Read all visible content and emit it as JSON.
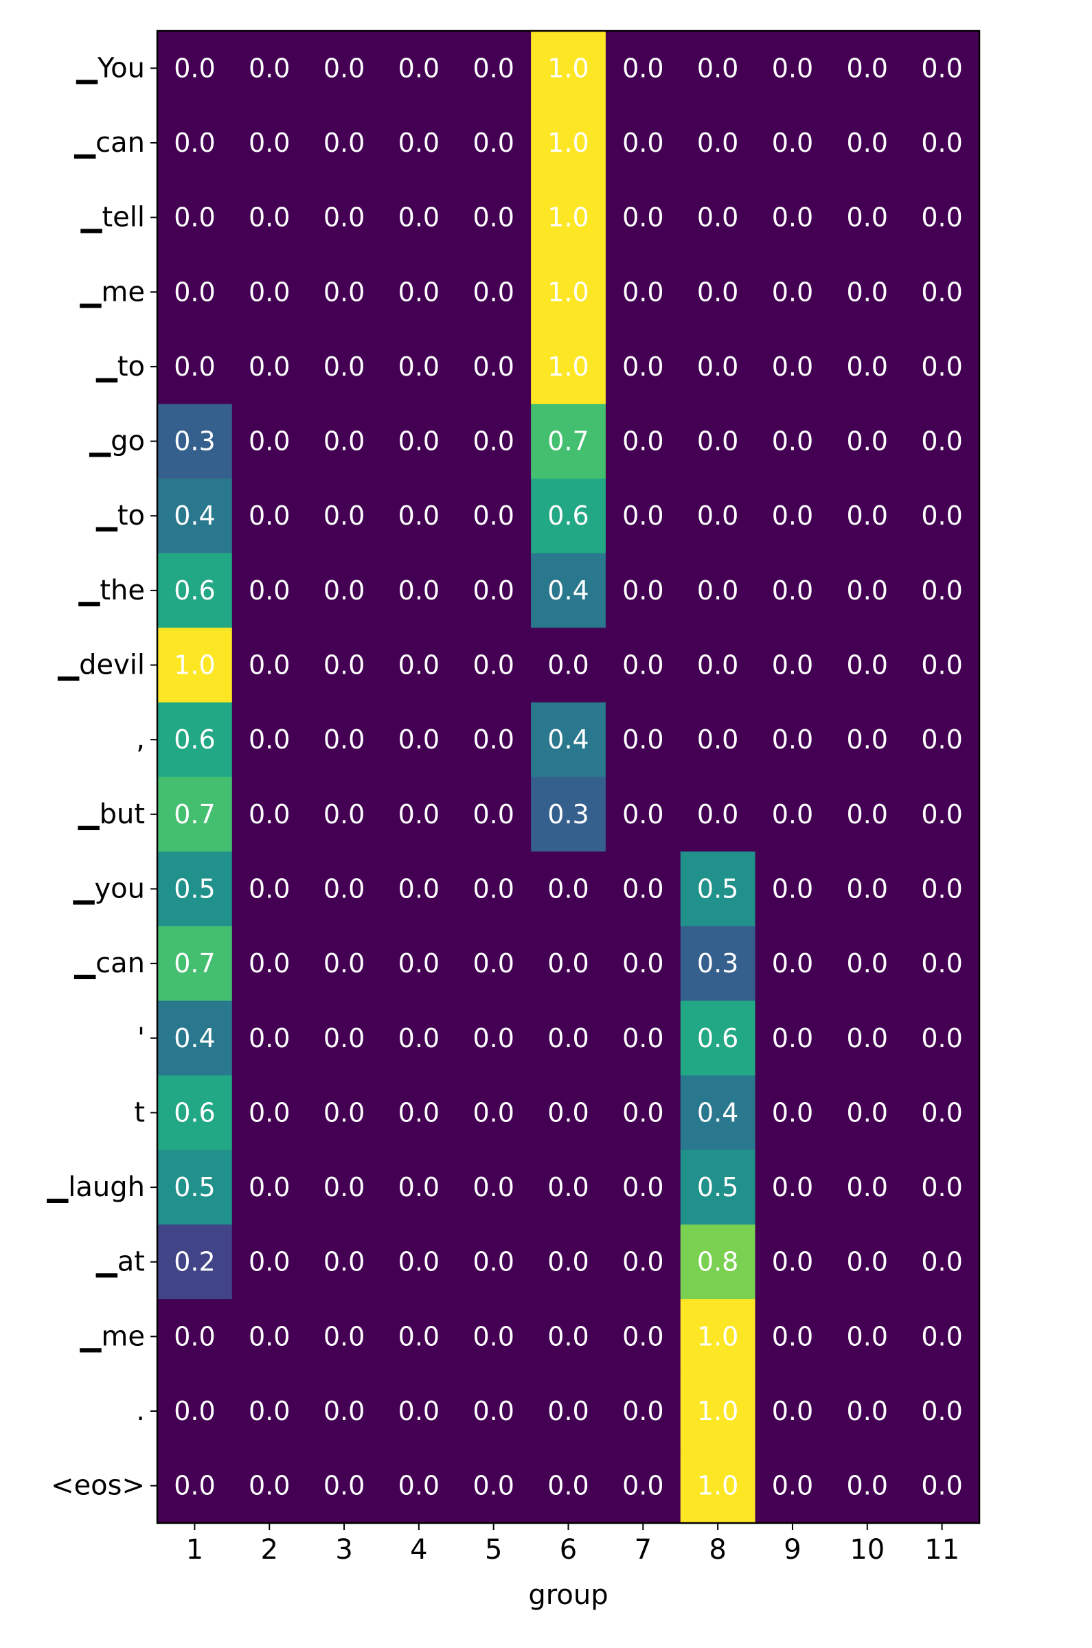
{
  "chart_data": {
    "type": "heatmap",
    "colormap": "viridis",
    "xlabel": "group",
    "ylabel": "",
    "title": "",
    "x_categories": [
      "1",
      "2",
      "3",
      "4",
      "5",
      "6",
      "7",
      "8",
      "9",
      "10",
      "11"
    ],
    "y_categories": [
      "▁You",
      "▁can",
      "▁tell",
      "▁me",
      "▁to",
      "▁go",
      "▁to",
      "▁the",
      "▁devil",
      ",",
      "▁but",
      "▁you",
      "▁can",
      "'",
      "t",
      "▁laugh",
      "▁at",
      "▁me",
      ".",
      "<eos>"
    ],
    "values": [
      [
        0.0,
        0.0,
        0.0,
        0.0,
        0.0,
        1.0,
        0.0,
        0.0,
        0.0,
        0.0,
        0.0
      ],
      [
        0.0,
        0.0,
        0.0,
        0.0,
        0.0,
        1.0,
        0.0,
        0.0,
        0.0,
        0.0,
        0.0
      ],
      [
        0.0,
        0.0,
        0.0,
        0.0,
        0.0,
        1.0,
        0.0,
        0.0,
        0.0,
        0.0,
        0.0
      ],
      [
        0.0,
        0.0,
        0.0,
        0.0,
        0.0,
        1.0,
        0.0,
        0.0,
        0.0,
        0.0,
        0.0
      ],
      [
        0.0,
        0.0,
        0.0,
        0.0,
        0.0,
        1.0,
        0.0,
        0.0,
        0.0,
        0.0,
        0.0
      ],
      [
        0.3,
        0.0,
        0.0,
        0.0,
        0.0,
        0.7,
        0.0,
        0.0,
        0.0,
        0.0,
        0.0
      ],
      [
        0.4,
        0.0,
        0.0,
        0.0,
        0.0,
        0.6,
        0.0,
        0.0,
        0.0,
        0.0,
        0.0
      ],
      [
        0.6,
        0.0,
        0.0,
        0.0,
        0.0,
        0.4,
        0.0,
        0.0,
        0.0,
        0.0,
        0.0
      ],
      [
        1.0,
        0.0,
        0.0,
        0.0,
        0.0,
        0.0,
        0.0,
        0.0,
        0.0,
        0.0,
        0.0
      ],
      [
        0.6,
        0.0,
        0.0,
        0.0,
        0.0,
        0.4,
        0.0,
        0.0,
        0.0,
        0.0,
        0.0
      ],
      [
        0.7,
        0.0,
        0.0,
        0.0,
        0.0,
        0.3,
        0.0,
        0.0,
        0.0,
        0.0,
        0.0
      ],
      [
        0.5,
        0.0,
        0.0,
        0.0,
        0.0,
        0.0,
        0.0,
        0.5,
        0.0,
        0.0,
        0.0
      ],
      [
        0.7,
        0.0,
        0.0,
        0.0,
        0.0,
        0.0,
        0.0,
        0.3,
        0.0,
        0.0,
        0.0
      ],
      [
        0.4,
        0.0,
        0.0,
        0.0,
        0.0,
        0.0,
        0.0,
        0.6,
        0.0,
        0.0,
        0.0
      ],
      [
        0.6,
        0.0,
        0.0,
        0.0,
        0.0,
        0.0,
        0.0,
        0.4,
        0.0,
        0.0,
        0.0
      ],
      [
        0.5,
        0.0,
        0.0,
        0.0,
        0.0,
        0.0,
        0.0,
        0.5,
        0.0,
        0.0,
        0.0
      ],
      [
        0.2,
        0.0,
        0.0,
        0.0,
        0.0,
        0.0,
        0.0,
        0.8,
        0.0,
        0.0,
        0.0
      ],
      [
        0.0,
        0.0,
        0.0,
        0.0,
        0.0,
        0.0,
        0.0,
        1.0,
        0.0,
        0.0,
        0.0
      ],
      [
        0.0,
        0.0,
        0.0,
        0.0,
        0.0,
        0.0,
        0.0,
        1.0,
        0.0,
        0.0,
        0.0
      ],
      [
        0.0,
        0.0,
        0.0,
        0.0,
        0.0,
        0.0,
        0.0,
        1.0,
        0.0,
        0.0,
        0.0
      ]
    ],
    "value_range": [
      0,
      1
    ],
    "cell_annotation_decimals": 1,
    "grid": false,
    "legend": "none"
  }
}
